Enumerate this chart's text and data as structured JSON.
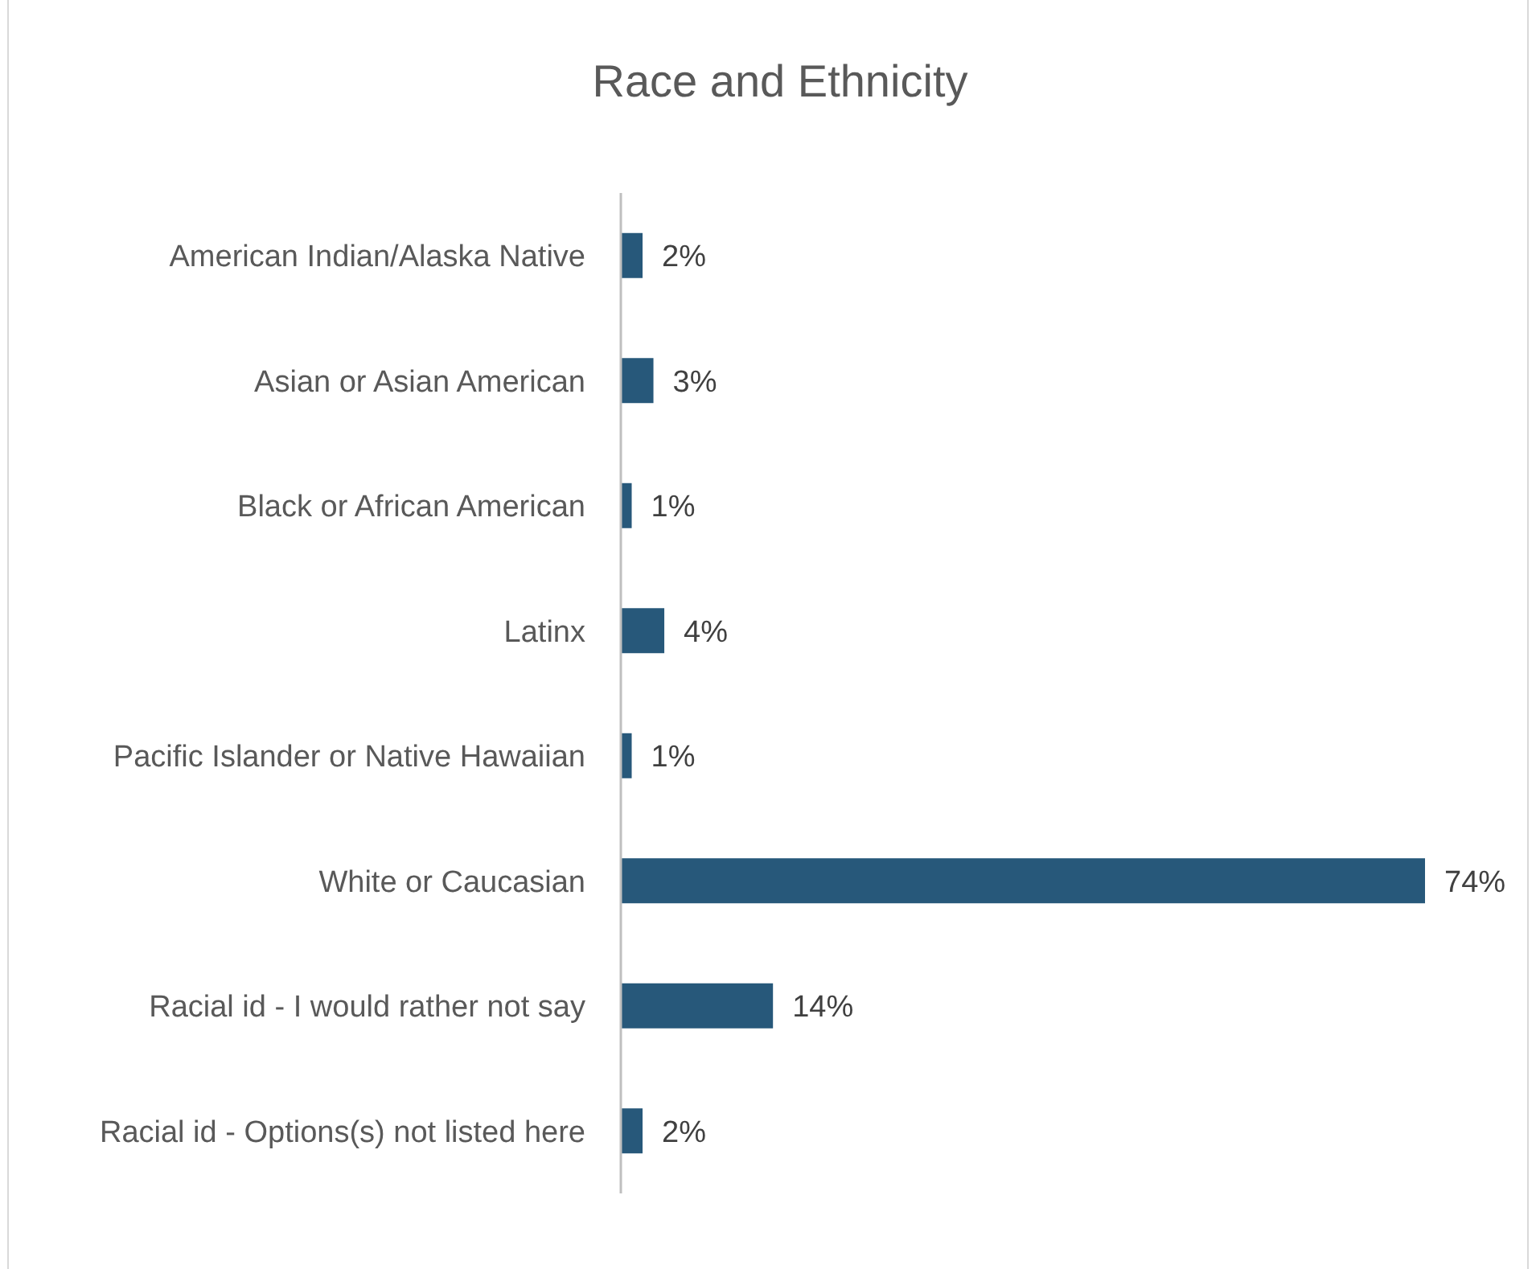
{
  "chart_data": {
    "type": "bar",
    "orientation": "horizontal",
    "title": "Race and Ethnicity",
    "categories": [
      "American Indian/Alaska Native",
      "Asian or Asian American",
      "Black or African American",
      "Latinx",
      "Pacific Islander or Native Hawaiian",
      "White or Caucasian",
      "Racial id - I would rather not say",
      "Racial id - Options(s) not listed here"
    ],
    "values": [
      2,
      3,
      1,
      4,
      1,
      74,
      14,
      2
    ],
    "value_labels": [
      "2%",
      "3%",
      "1%",
      "4%",
      "1%",
      "74%",
      "14%",
      "2%"
    ],
    "color": "#27587a"
  }
}
